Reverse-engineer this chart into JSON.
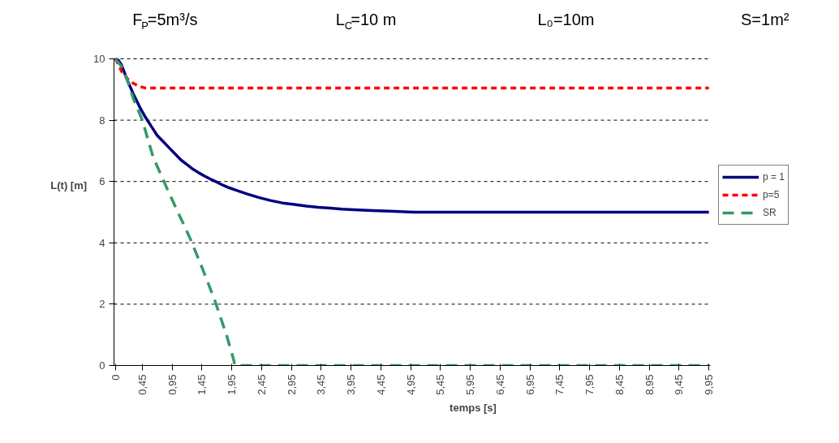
{
  "chart_data": {
    "type": "line",
    "annotations": [
      "F$_{P}$=5m³/s",
      "L$_{C}$=10 m",
      "L₀=10m",
      "S=1m²"
    ],
    "xlabel": "temps [s]",
    "ylabel": "L(t) [m]",
    "xlim": [
      -0.025,
      9.975
    ],
    "ylim": [
      0,
      10
    ],
    "xticks": [
      {
        "value": 0,
        "label": "0"
      },
      {
        "value": 0.45,
        "label": "0,45"
      },
      {
        "value": 0.95,
        "label": "0,95"
      },
      {
        "value": 1.45,
        "label": "1,45"
      },
      {
        "value": 1.95,
        "label": "1,95"
      },
      {
        "value": 2.45,
        "label": "2,45"
      },
      {
        "value": 2.95,
        "label": "2,95"
      },
      {
        "value": 3.45,
        "label": "3,45"
      },
      {
        "value": 3.95,
        "label": "3,95"
      },
      {
        "value": 4.45,
        "label": "4,45"
      },
      {
        "value": 4.95,
        "label": "4,95"
      },
      {
        "value": 5.45,
        "label": "5,45"
      },
      {
        "value": 5.95,
        "label": "5,95"
      },
      {
        "value": 6.45,
        "label": "6,45"
      },
      {
        "value": 6.95,
        "label": "6,95"
      },
      {
        "value": 7.45,
        "label": "7,45"
      },
      {
        "value": 7.95,
        "label": "7,95"
      },
      {
        "value": 8.45,
        "label": "8,45"
      },
      {
        "value": 8.95,
        "label": "8,95"
      },
      {
        "value": 9.45,
        "label": "9,45"
      },
      {
        "value": 9.95,
        "label": "9,95"
      }
    ],
    "yticks": [
      0,
      2,
      4,
      6,
      8,
      10
    ],
    "grid": "y",
    "legend": "right",
    "marker": "none",
    "series": [
      {
        "name": "p = 1",
        "color": "#000080",
        "line_style": "solid",
        "x": [
          0,
          0.05,
          0.1,
          0.2,
          0.3,
          0.4,
          0.5,
          0.6,
          0.7,
          0.8,
          0.9,
          1.0,
          1.1,
          1.2,
          1.3,
          1.4,
          1.5,
          1.6,
          1.7,
          1.8,
          1.9,
          2.0,
          2.2,
          2.4,
          2.6,
          2.8,
          3.0,
          3.2,
          3.4,
          3.6,
          3.8,
          4.0,
          4.3,
          4.6,
          5.0,
          6,
          7,
          8,
          9,
          9.95
        ],
        "values": [
          10,
          9.95,
          9.8,
          9.3,
          8.85,
          8.45,
          8.1,
          7.8,
          7.5,
          7.3,
          7.1,
          6.9,
          6.7,
          6.55,
          6.4,
          6.28,
          6.17,
          6.07,
          5.98,
          5.88,
          5.8,
          5.73,
          5.6,
          5.48,
          5.38,
          5.3,
          5.25,
          5.2,
          5.16,
          5.13,
          5.1,
          5.08,
          5.05,
          5.03,
          5.0,
          5.0,
          5.0,
          5.0,
          5.0,
          5.0
        ]
      },
      {
        "name": "p=5",
        "color": "#ff0000",
        "line_style": "dotted",
        "x": [
          0,
          0.1,
          0.2,
          0.3,
          0.4,
          0.5,
          1,
          9.95
        ],
        "values": [
          10,
          9.6,
          9.35,
          9.2,
          9.1,
          9.05,
          9.05,
          9.05
        ]
      },
      {
        "name": "SR",
        "color": "#339966",
        "line_style": "dashed",
        "x": [
          0,
          0.1,
          0.2,
          0.3,
          0.45,
          0.63,
          0.88,
          1.25,
          1.45,
          1.66,
          1.86,
          1.98,
          2.0,
          9.95
        ],
        "values": [
          10,
          9.75,
          9.3,
          8.7,
          8.0,
          6.8,
          5.7,
          4.15,
          3.2,
          2.15,
          1.0,
          0.2,
          0,
          0
        ]
      }
    ]
  }
}
